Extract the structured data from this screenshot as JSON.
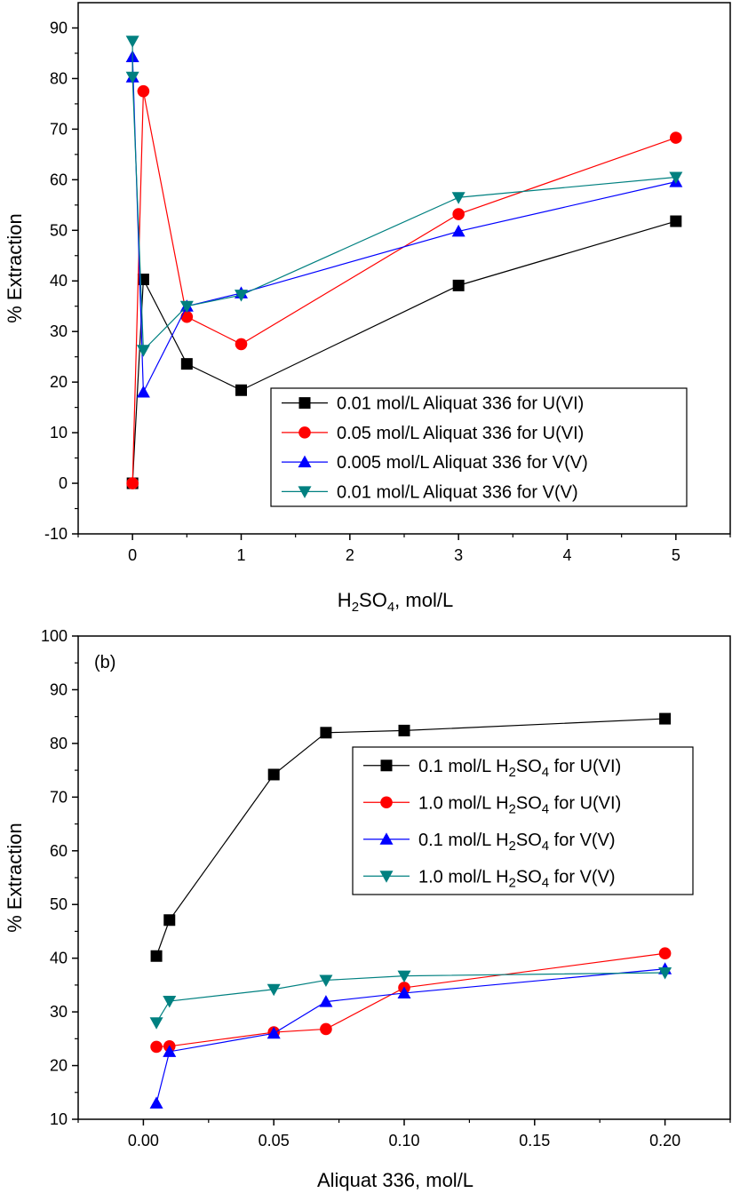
{
  "chart_data": [
    {
      "type": "line",
      "panel_label": "",
      "xlabel": {
        "main": "H",
        "sub1": "2",
        "mid": "SO",
        "sub2": "4",
        "tail": ", mol/L"
      },
      "ylabel": "% Extraction",
      "xlim": [
        -0.5,
        5.5
      ],
      "ylim": [
        -10,
        95
      ],
      "x_ticks": [
        0,
        1,
        2,
        3,
        4,
        5
      ],
      "x_tick_labels": [
        "0",
        "1",
        "2",
        "3",
        "4",
        "5"
      ],
      "y_ticks": [
        -10,
        0,
        10,
        20,
        30,
        40,
        50,
        60,
        70,
        80,
        90
      ],
      "y_tick_labels": [
        "-10",
        "0",
        "10",
        "20",
        "30",
        "40",
        "50",
        "60",
        "70",
        "80",
        "90"
      ],
      "legend_position": "bottom-right",
      "series": [
        {
          "name": "0.01 mol/L Aliquat 336 for U(VI)",
          "color": "#000000",
          "marker": "square",
          "x": [
            0,
            0.1,
            0.5,
            1,
            3,
            5
          ],
          "y": [
            0,
            40.3,
            23.6,
            18.4,
            39.1,
            51.8
          ]
        },
        {
          "name": "0.05 mol/L Aliquat 336 for U(VI)",
          "color": "#ff0000",
          "marker": "circle",
          "x": [
            0,
            0.1,
            0.5,
            1,
            3,
            5
          ],
          "y": [
            0,
            77.5,
            32.9,
            27.5,
            53.2,
            68.3
          ]
        },
        {
          "name": "0.005 mol/L Aliquat 336 for V(V)",
          "color": "#0000ff",
          "marker": "triangle-up",
          "x": [
            0,
            0,
            0.1,
            0.5,
            1,
            3,
            5
          ],
          "y": [
            80.3,
            84.3,
            18.0,
            35.0,
            37.6,
            49.8,
            59.6
          ]
        },
        {
          "name": "0.01 mol/L Aliquat 336 for V(V)",
          "color": "#008080",
          "marker": "triangle-down",
          "x": [
            0,
            0,
            0.1,
            0.5,
            1,
            3,
            5
          ],
          "y": [
            87.4,
            80.3,
            26.3,
            35.0,
            37.2,
            56.5,
            60.5
          ]
        }
      ]
    },
    {
      "type": "line",
      "panel_label": "(b)",
      "xlabel": {
        "main": "Aliquat 336, mol/L",
        "sub1": "",
        "mid": "",
        "sub2": "",
        "tail": ""
      },
      "ylabel": "% Extraction",
      "xlim": [
        -0.025,
        0.225
      ],
      "ylim": [
        10,
        100
      ],
      "x_ticks": [
        0,
        0.05,
        0.1,
        0.15,
        0.2
      ],
      "x_tick_labels": [
        "0.00",
        "0.05",
        "0.10",
        "0.15",
        "0.20"
      ],
      "y_ticks": [
        10,
        20,
        30,
        40,
        50,
        60,
        70,
        80,
        90,
        100
      ],
      "y_tick_labels": [
        "10",
        "20",
        "30",
        "40",
        "50",
        "60",
        "70",
        "80",
        "90",
        "100"
      ],
      "legend_position": "top-right",
      "series": [
        {
          "name": "0.1 mol/L H2SO4 for U(VI)",
          "label_parts": [
            "0.1 mol/L H",
            "2",
            "SO",
            "4",
            " for U(VI)"
          ],
          "color": "#000000",
          "marker": "square",
          "x": [
            0.005,
            0.01,
            0.05,
            0.07,
            0.1,
            0.2
          ],
          "y": [
            40.4,
            47.1,
            74.2,
            82.0,
            82.4,
            84.6
          ]
        },
        {
          "name": "1.0 mol/L H2SO4 for U(VI)",
          "label_parts": [
            "1.0 mol/L H",
            "2",
            "SO",
            "4",
            " for U(VI)"
          ],
          "color": "#ff0000",
          "marker": "circle",
          "x": [
            0.005,
            0.01,
            0.05,
            0.07,
            0.1,
            0.2
          ],
          "y": [
            23.5,
            23.6,
            26.2,
            26.8,
            34.5,
            40.9
          ]
        },
        {
          "name": "0.1 mol/L H2SO4 for V(V)",
          "label_parts": [
            "0.1 mol/L  H",
            "2",
            "SO",
            "4",
            " for V(V)"
          ],
          "color": "#0000ff",
          "marker": "triangle-up",
          "x": [
            0.005,
            0.01,
            0.05,
            0.07,
            0.1,
            0.2
          ],
          "y": [
            13.0,
            22.6,
            26.0,
            31.9,
            33.5,
            38.0
          ]
        },
        {
          "name": "1.0 mol/L H2SO4 for V(V)",
          "label_parts": [
            "1.0 mol/L  H",
            "2",
            "SO",
            "4",
            " for V(V)"
          ],
          "color": "#008080",
          "marker": "triangle-down",
          "x": [
            0.005,
            0.01,
            0.05,
            0.07,
            0.1,
            0.2
          ],
          "y": [
            28.0,
            32.0,
            34.2,
            35.9,
            36.7,
            37.3
          ]
        }
      ]
    }
  ]
}
